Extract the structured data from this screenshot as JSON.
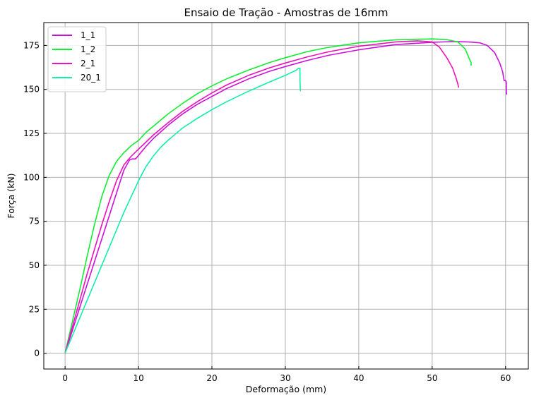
{
  "chart_data": {
    "type": "line",
    "title": "Ensaio de Tração - Amostras de 16mm",
    "xlabel": "Deformação (mm)",
    "ylabel": "Força (kN)",
    "xlim": [
      -2.9,
      63.1
    ],
    "ylim": [
      -9,
      188
    ],
    "xticks": [
      0,
      10,
      20,
      30,
      40,
      50,
      60
    ],
    "yticks": [
      0,
      25,
      50,
      75,
      100,
      125,
      150,
      175
    ],
    "grid": true,
    "legend_position": "top-left",
    "series": [
      {
        "name": "1_1",
        "color": "#cc11dd",
        "x": [
          0,
          1,
          2,
          3,
          4,
          5,
          6,
          7,
          8,
          8.8,
          9.2,
          9.6,
          10,
          11,
          12,
          14,
          16,
          18,
          20,
          22,
          25,
          28,
          30,
          33,
          36,
          40,
          45,
          50,
          53,
          55,
          56.5,
          57.5,
          58.5,
          59.2,
          59.6,
          59.8,
          60.0,
          60.1,
          60.1,
          60.15
        ],
        "y": [
          0,
          13,
          26,
          39,
          52,
          65,
          78,
          91,
          104,
          110,
          110.5,
          110.5,
          112.5,
          117.5,
          122,
          129.5,
          136,
          141.5,
          146,
          150.5,
          156,
          160.5,
          163,
          166.5,
          169.5,
          172.5,
          175.5,
          176.8,
          177.2,
          177,
          176.5,
          175,
          171,
          165,
          160,
          155,
          155,
          154,
          150,
          147
        ]
      },
      {
        "name": "1_2",
        "color": "#11ee33",
        "x": [
          0,
          1,
          2,
          3,
          4,
          5,
          6,
          7,
          8,
          9,
          10,
          11,
          12,
          14,
          16,
          18,
          20,
          22,
          25,
          28,
          30,
          33,
          36,
          40,
          45,
          50,
          52,
          53.5,
          54.5,
          55.0,
          55.2,
          55.3,
          55.3
        ],
        "y": [
          0,
          18,
          36,
          55,
          73,
          89,
          101,
          109,
          114,
          118,
          121,
          125.5,
          129,
          136,
          142,
          147.5,
          152,
          156,
          161,
          165.5,
          168,
          171.5,
          174,
          176.5,
          178.2,
          178.7,
          178.3,
          177,
          173,
          168,
          166,
          165.5,
          163.5
        ]
      },
      {
        "name": "2_1",
        "color": "#ee11bb",
        "x": [
          0,
          1,
          2,
          3,
          4,
          5,
          6,
          7,
          8,
          9,
          10,
          11,
          12,
          14,
          16,
          18,
          20,
          22,
          25,
          28,
          30,
          33,
          36,
          40,
          45,
          48,
          50,
          51,
          52,
          52.8,
          53.3,
          53.5,
          53.6
        ],
        "y": [
          0,
          15,
          30,
          45,
          59,
          73,
          86,
          98,
          107,
          112,
          116,
          120,
          124,
          131,
          137.5,
          143,
          148,
          152.5,
          158,
          162.5,
          165,
          168.5,
          171.5,
          174.5,
          177,
          177.6,
          177,
          174,
          168,
          162,
          156,
          153,
          151
        ]
      },
      {
        "name": "20_1",
        "color": "#11eeaa",
        "x": [
          0,
          2,
          4,
          6,
          8,
          10,
          11,
          12,
          13,
          14,
          16,
          18,
          20,
          22,
          25,
          28,
          30,
          31,
          31.5,
          31.8,
          32.0,
          32.0,
          32.05
        ],
        "y": [
          0,
          20,
          40,
          60,
          80,
          98,
          106,
          112,
          117,
          121,
          128,
          133.5,
          138.5,
          143,
          149,
          154.5,
          158,
          160,
          161,
          162,
          162,
          155,
          149
        ]
      }
    ]
  }
}
